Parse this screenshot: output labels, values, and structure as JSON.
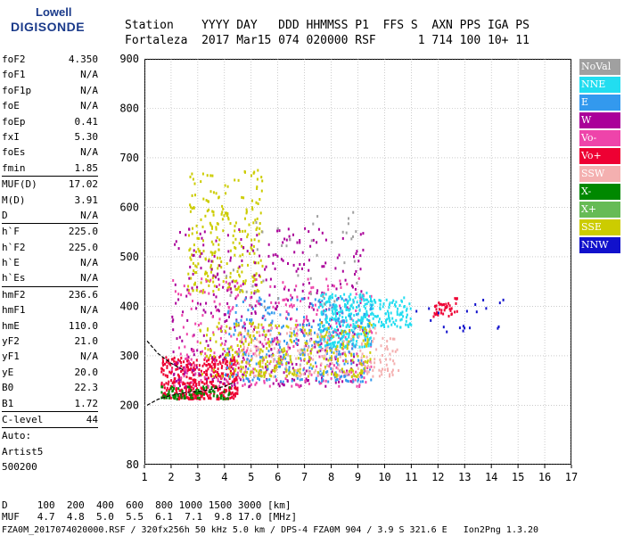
{
  "logo": {
    "line1": "Lowell",
    "line2": "DIGISONDE"
  },
  "header": {
    "line1": "Station    YYYY DAY   DDD HHMMSS P1  FFS S  AXN PPS IGA PS",
    "line2": "Fortaleza  2017 Mar15 074 020000 RSF      1 714 100 10+ 11"
  },
  "params": [
    {
      "name": "foF2",
      "value": "4.350"
    },
    {
      "name": "foF1",
      "value": "N/A"
    },
    {
      "name": "foF1p",
      "value": "N/A"
    },
    {
      "name": "foE",
      "value": "N/A"
    },
    {
      "name": "foEp",
      "value": "0.41"
    },
    {
      "name": "fxI",
      "value": "5.30"
    },
    {
      "name": "foEs",
      "value": "N/A"
    },
    {
      "name": "fmin",
      "value": "1.85"
    },
    {
      "sep": true
    },
    {
      "name": "MUF(D)",
      "value": "17.02"
    },
    {
      "name": "M(D)",
      "value": "3.91"
    },
    {
      "name": "D",
      "value": "N/A"
    },
    {
      "sep": true
    },
    {
      "name": "h`F",
      "value": "225.0"
    },
    {
      "name": "h`F2",
      "value": "225.0"
    },
    {
      "name": "h`E",
      "value": "N/A"
    },
    {
      "name": "h`Es",
      "value": "N/A"
    },
    {
      "sep": true
    },
    {
      "name": "hmF2",
      "value": "236.6"
    },
    {
      "name": "hmF1",
      "value": "N/A"
    },
    {
      "name": "hmE",
      "value": "110.0"
    },
    {
      "name": "yF2",
      "value": "21.0"
    },
    {
      "name": "yF1",
      "value": "N/A"
    },
    {
      "name": "yE",
      "value": "20.0"
    },
    {
      "name": "B0",
      "value": "22.3"
    },
    {
      "name": "B1",
      "value": "1.72"
    },
    {
      "sep": true
    },
    {
      "name": "C-level",
      "value": "44"
    },
    {
      "sep": true
    },
    {
      "name": "Auto:",
      "value": ""
    },
    {
      "name": "Artist5",
      "value": ""
    },
    {
      "name": "500200",
      "value": ""
    }
  ],
  "legend": [
    {
      "label": "NoVal",
      "color": "#a0a0a0"
    },
    {
      "label": "NNE",
      "color": "#22ddf0"
    },
    {
      "label": "E",
      "color": "#3399ee"
    },
    {
      "label": "W",
      "color": "#aa0099"
    },
    {
      "label": "Vo-",
      "color": "#ee44aa"
    },
    {
      "label": "Vo+",
      "color": "#ee0033"
    },
    {
      "label": "SSW",
      "color": "#f4b0b0"
    },
    {
      "label": "X-",
      "color": "#008800"
    },
    {
      "label": "X+",
      "color": "#66bb55"
    },
    {
      "label": "SSE",
      "color": "#cccc00"
    },
    {
      "label": "NNW",
      "color": "#1111cc"
    }
  ],
  "footer": {
    "line1": "D     100  200  400  600  800 1000 1500 3000 [km]",
    "line2": "MUF   4.7  4.8  5.0  5.5  6.1  7.1  9.8 17.0 [MHz]",
    "line3": "FZA0M_2017074020000.RSF / 320fx256h 50 kHz 5.0 km / DPS-4 FZA0M 904 / 3.9 S 321.6 E   Ion2Png 1.3.20"
  },
  "chart_data": {
    "type": "scatter",
    "xlim": [
      1,
      17
    ],
    "ylim": [
      80,
      900
    ],
    "x_ticks": [
      1,
      2,
      3,
      4,
      5,
      6,
      7,
      8,
      9,
      10,
      11,
      12,
      13,
      14,
      15,
      16,
      17
    ],
    "y_ticks": [
      80,
      200,
      300,
      400,
      500,
      600,
      700,
      800,
      900
    ],
    "grid": true,
    "legend_placement": "right",
    "clusters": [
      {
        "name": "SSE",
        "x": [
          2.6,
          5.4
        ],
        "y": [
          430,
          680
        ],
        "n": 260
      },
      {
        "name": "Vo+",
        "x": [
          1.6,
          4.5
        ],
        "y": [
          215,
          300
        ],
        "n": 420
      },
      {
        "name": "W",
        "x": [
          2,
          9.3
        ],
        "y": [
          240,
          560
        ],
        "n": 420
      },
      {
        "name": "Vo-",
        "x": [
          2,
          9.5
        ],
        "y": [
          240,
          460
        ],
        "n": 320
      },
      {
        "name": "NNE",
        "x": [
          7.5,
          9.5
        ],
        "y": [
          320,
          430
        ],
        "n": 300
      },
      {
        "name": "E",
        "x": [
          4,
          9.5
        ],
        "y": [
          250,
          420
        ],
        "n": 300
      },
      {
        "name": "SSW",
        "x": [
          4.5,
          10.5
        ],
        "y": [
          260,
          360
        ],
        "n": 220
      },
      {
        "name": "SSE",
        "x": [
          3,
          9.5
        ],
        "y": [
          260,
          370
        ],
        "n": 300
      },
      {
        "name": "NNE",
        "x": [
          9.5,
          11
        ],
        "y": [
          360,
          420
        ],
        "n": 90
      },
      {
        "name": "Vo+",
        "x": [
          11.8,
          12.7
        ],
        "y": [
          380,
          420
        ],
        "n": 40
      },
      {
        "name": "NNW",
        "x": [
          11,
          14.5
        ],
        "y": [
          350,
          420
        ],
        "n": 20
      },
      {
        "name": "X-",
        "x": [
          1.6,
          4.2
        ],
        "y": [
          215,
          240
        ],
        "n": 80
      },
      {
        "name": "NoVal",
        "x": [
          4,
          9
        ],
        "y": [
          400,
          600
        ],
        "n": 40
      }
    ],
    "trace": {
      "x": [
        1.1,
        1.5,
        2.0,
        2.5,
        3.0,
        3.5,
        4.0,
        4.3
      ],
      "y": [
        200,
        212,
        220,
        225,
        228,
        232,
        238,
        245
      ]
    },
    "trace_upper": {
      "x": [
        1.1,
        1.5,
        2.0,
        2.5
      ],
      "y": [
        330,
        305,
        285,
        270
      ]
    }
  }
}
